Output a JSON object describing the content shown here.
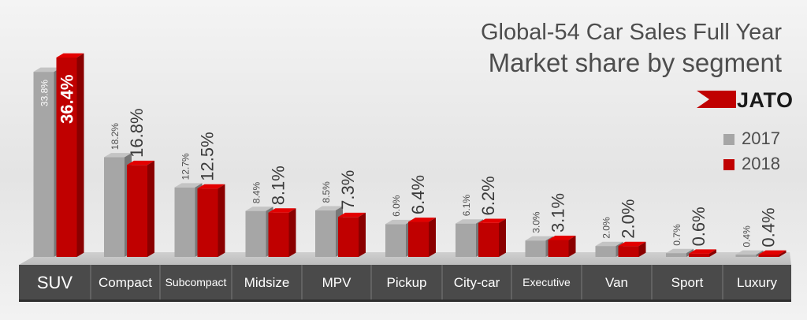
{
  "header": {
    "title": "Global-54 Car Sales Full Year",
    "subtitle": "Market share by segment",
    "logo_text": "JATO"
  },
  "colors": {
    "series_2017": "#a6a6a6",
    "series_2018": "#c00000",
    "category_bar": "#4a4a4a",
    "title_text": "#4d4d4d",
    "background": "#e6e6e6"
  },
  "chart_data": {
    "type": "bar",
    "title": "Global-54 Car Sales Full Year",
    "subtitle": "Market share by segment",
    "categories": [
      "SUV",
      "Compact",
      "Subcompact",
      "Midsize",
      "MPV",
      "Pickup",
      "City-car",
      "Executive",
      "Van",
      "Sport",
      "Luxury"
    ],
    "series": [
      {
        "name": "2017",
        "values": [
          33.8,
          18.2,
          12.7,
          8.4,
          8.5,
          6.0,
          6.1,
          3.0,
          2.0,
          0.7,
          0.4
        ],
        "labels": [
          "33.8%",
          "18.2%",
          "12.7%",
          "8.4%",
          "8.5%",
          "6.0%",
          "6.1%",
          "3.0%",
          "2.0%",
          "0.7%",
          "0.4%"
        ],
        "color": "#a6a6a6"
      },
      {
        "name": "2018",
        "values": [
          36.4,
          16.8,
          12.5,
          8.1,
          7.3,
          6.4,
          6.2,
          3.1,
          2.0,
          0.6,
          0.4
        ],
        "labels": [
          "36.4%",
          "16.8%",
          "12.5%",
          "8.1%",
          "7.3%",
          "6.4%",
          "6.2%",
          "3.1%",
          "2.0%",
          "0.6%",
          "0.4%"
        ],
        "color": "#c00000"
      }
    ],
    "legend_position": "right",
    "grid": false,
    "ylim": [
      0,
      36.4
    ]
  }
}
